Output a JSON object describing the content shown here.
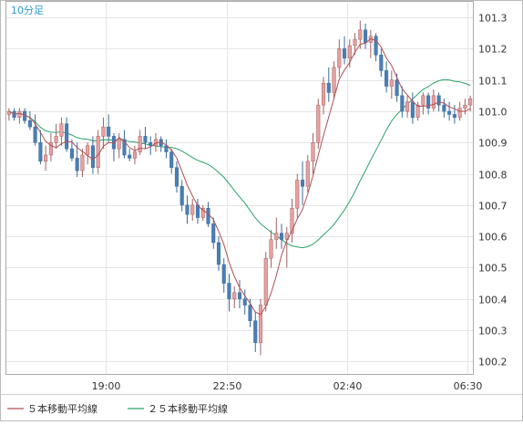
{
  "chart_data": {
    "type": "candlestick",
    "timeframe_label": "10分足",
    "x_tick_labels": [
      "19:00",
      "22:50",
      "02:40",
      "06:30"
    ],
    "y_tick_labels": [
      "101.3",
      "101.2",
      "101.1",
      "101.0",
      "100.9",
      "100.8",
      "100.7",
      "100.6",
      "100.5",
      "100.4",
      "100.3",
      "100.2"
    ],
    "ylim": [
      100.16,
      101.35
    ],
    "grid": true,
    "legend_position": "bottom-left",
    "legend": [
      {
        "label": "５本移動平均線",
        "color": "#b05050"
      },
      {
        "label": "２５本移動平均線",
        "color": "#2aa36a"
      }
    ],
    "colors": {
      "up": "#e8a0a0",
      "up_border": "#a06060",
      "down": "#4a7fb5",
      "down_border": "#3a6a9a",
      "ma5": "#b05050",
      "ma25": "#2aa36a",
      "label_text": "#2a9ad0"
    },
    "candles": [
      [
        100.99,
        101.01,
        100.97,
        101.0
      ],
      [
        101.0,
        101.01,
        100.97,
        100.98
      ],
      [
        100.98,
        101.01,
        100.96,
        101.0
      ],
      [
        101.0,
        101.01,
        100.96,
        100.97
      ],
      [
        100.97,
        101.0,
        100.94,
        100.95
      ],
      [
        100.95,
        100.99,
        100.89,
        100.9
      ],
      [
        100.9,
        100.94,
        100.83,
        100.84
      ],
      [
        100.84,
        100.89,
        100.81,
        100.86
      ],
      [
        100.86,
        100.93,
        100.84,
        100.9
      ],
      [
        100.9,
        100.96,
        100.88,
        100.92
      ],
      [
        100.92,
        100.98,
        100.89,
        100.96
      ],
      [
        100.96,
        100.98,
        100.87,
        100.88
      ],
      [
        100.88,
        100.91,
        100.84,
        100.85
      ],
      [
        100.85,
        100.9,
        100.79,
        100.81
      ],
      [
        100.81,
        100.88,
        100.79,
        100.86
      ],
      [
        100.86,
        100.9,
        100.83,
        100.89
      ],
      [
        100.89,
        100.92,
        100.8,
        100.82
      ],
      [
        100.82,
        100.94,
        100.8,
        100.92
      ],
      [
        100.92,
        100.98,
        100.88,
        100.95
      ],
      [
        100.95,
        100.99,
        100.9,
        100.92
      ],
      [
        100.92,
        100.93,
        100.84,
        100.88
      ],
      [
        100.88,
        100.93,
        100.85,
        100.91
      ],
      [
        100.91,
        100.94,
        100.85,
        100.86
      ],
      [
        100.86,
        100.88,
        100.84,
        100.85
      ],
      [
        100.85,
        100.89,
        100.83,
        100.87
      ],
      [
        100.87,
        100.94,
        100.86,
        100.92
      ],
      [
        100.92,
        100.95,
        100.88,
        100.9
      ],
      [
        100.9,
        100.92,
        100.86,
        100.89
      ],
      [
        100.89,
        100.93,
        100.87,
        100.91
      ],
      [
        100.91,
        100.92,
        100.87,
        100.89
      ],
      [
        100.89,
        100.91,
        100.85,
        100.87
      ],
      [
        100.87,
        100.88,
        100.8,
        100.82
      ],
      [
        100.82,
        100.84,
        100.74,
        100.76
      ],
      [
        100.76,
        100.78,
        100.68,
        100.7
      ],
      [
        100.7,
        100.73,
        100.64,
        100.67
      ],
      [
        100.67,
        100.72,
        100.65,
        100.7
      ],
      [
        100.7,
        100.72,
        100.64,
        100.66
      ],
      [
        100.66,
        100.7,
        100.65,
        100.69
      ],
      [
        100.69,
        100.71,
        100.63,
        100.64
      ],
      [
        100.64,
        100.66,
        100.56,
        100.58
      ],
      [
        100.58,
        100.6,
        100.49,
        100.51
      ],
      [
        100.51,
        100.53,
        100.42,
        100.45
      ],
      [
        100.45,
        100.48,
        100.36,
        100.4
      ],
      [
        100.4,
        100.44,
        100.37,
        100.42
      ],
      [
        100.42,
        100.46,
        100.37,
        100.4
      ],
      [
        100.4,
        100.43,
        100.35,
        100.38
      ],
      [
        100.38,
        100.4,
        100.31,
        100.33
      ],
      [
        100.33,
        100.36,
        100.23,
        100.26
      ],
      [
        100.26,
        100.4,
        100.22,
        100.38
      ],
      [
        100.38,
        100.55,
        100.36,
        100.53
      ],
      [
        100.53,
        100.62,
        100.5,
        100.59
      ],
      [
        100.59,
        100.66,
        100.56,
        100.61
      ],
      [
        100.61,
        100.64,
        100.56,
        100.59
      ],
      [
        100.59,
        100.63,
        100.5,
        100.61
      ],
      [
        100.61,
        100.72,
        100.58,
        100.69
      ],
      [
        100.69,
        100.8,
        100.66,
        100.78
      ],
      [
        100.78,
        100.84,
        100.7,
        100.76
      ],
      [
        100.76,
        100.86,
        100.74,
        100.84
      ],
      [
        100.84,
        100.93,
        100.8,
        100.9
      ],
      [
        100.9,
        101.04,
        100.88,
        101.02
      ],
      [
        101.02,
        101.11,
        100.99,
        101.09
      ],
      [
        101.09,
        101.14,
        101.03,
        101.06
      ],
      [
        101.06,
        101.16,
        101.04,
        101.14
      ],
      [
        101.14,
        101.23,
        101.11,
        101.2
      ],
      [
        101.2,
        101.24,
        101.15,
        101.17
      ],
      [
        101.17,
        101.23,
        101.14,
        101.21
      ],
      [
        101.21,
        101.25,
        101.18,
        101.23
      ],
      [
        101.23,
        101.29,
        101.2,
        101.26
      ],
      [
        101.26,
        101.28,
        101.2,
        101.22
      ],
      [
        101.22,
        101.26,
        101.17,
        101.24
      ],
      [
        101.24,
        101.25,
        101.16,
        101.18
      ],
      [
        101.18,
        101.2,
        101.11,
        101.13
      ],
      [
        101.13,
        101.16,
        101.06,
        101.08
      ],
      [
        101.08,
        101.13,
        101.04,
        101.1
      ],
      [
        101.1,
        101.12,
        101.03,
        101.05
      ],
      [
        101.05,
        101.08,
        100.98,
        101.0
      ],
      [
        101.0,
        101.05,
        100.98,
        101.03
      ],
      [
        101.03,
        101.06,
        100.96,
        100.98
      ],
      [
        100.98,
        101.03,
        100.97,
        101.02
      ],
      [
        101.02,
        101.06,
        100.99,
        101.05
      ],
      [
        101.05,
        101.06,
        100.99,
        101.01
      ],
      [
        101.01,
        101.07,
        101.0,
        101.05
      ],
      [
        101.05,
        101.06,
        101.0,
        101.02
      ],
      [
        101.02,
        101.04,
        100.98,
        101.0
      ],
      [
        101.0,
        101.03,
        100.97,
        100.99
      ],
      [
        100.99,
        101.02,
        100.96,
        100.98
      ],
      [
        100.98,
        101.03,
        100.97,
        101.01
      ],
      [
        101.01,
        101.04,
        100.99,
        101.02
      ],
      [
        101.02,
        101.05,
        101.0,
        101.04
      ]
    ]
  }
}
